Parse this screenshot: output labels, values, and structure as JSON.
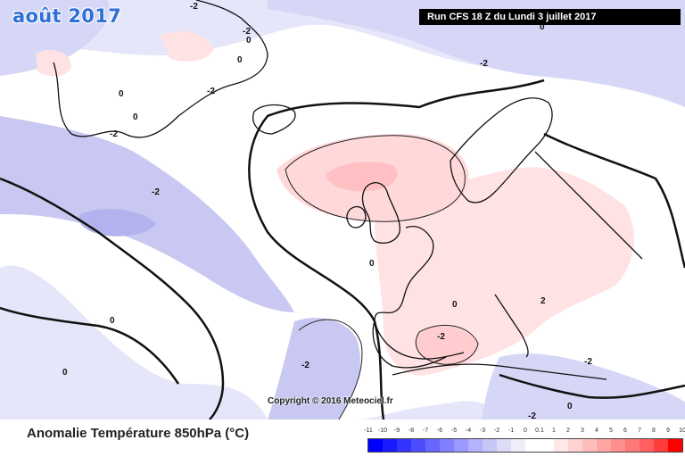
{
  "map": {
    "month_title": "août 2017",
    "run_label": "Run CFS 18 Z du Lundi 3 juillet 2017",
    "copyright": "Copyright © 2016 Meteociel.fr",
    "variable_title": "Anomalie Température 850hPa (°C)",
    "contour_labels": [
      "-2",
      "-2",
      "0",
      "0",
      "0",
      "-2",
      "-2",
      "-2",
      "0",
      "0",
      "-2",
      "0",
      "0",
      "0",
      "-2",
      "0",
      "-2",
      "2",
      "-2",
      "0",
      "-2"
    ],
    "legend": {
      "labels": [
        "-11",
        "-10",
        "-9",
        "-8",
        "-7",
        "-6",
        "-5",
        "-4",
        "-3",
        "-2",
        "-1",
        "0",
        "0.1",
        "1",
        "2",
        "3",
        "4",
        "5",
        "6",
        "7",
        "8",
        "9",
        "10"
      ],
      "colors": [
        "#0000ff",
        "#1a1aff",
        "#3333ff",
        "#4d4dff",
        "#6666ff",
        "#7f7fff",
        "#9999ff",
        "#b2b2ff",
        "#c6c6f7",
        "#dcdcf7",
        "#eeeefb",
        "#ffffff",
        "#ffffff",
        "#ffe8e8",
        "#ffd2d2",
        "#ffbcbc",
        "#ffa5a5",
        "#ff8f8f",
        "#ff7878",
        "#ff5f5f",
        "#ff3c3c",
        "#ff0000"
      ]
    }
  }
}
